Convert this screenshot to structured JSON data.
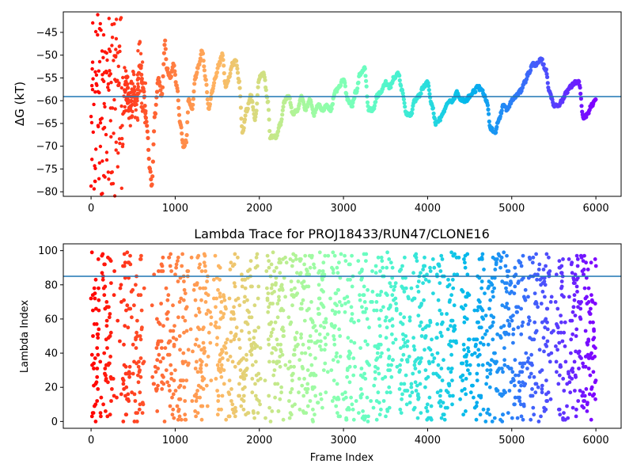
{
  "chart_data": [
    {
      "type": "scatter",
      "title": "",
      "xlabel": "",
      "ylabel": "ΔG (kT)",
      "xlim": [
        -330,
        6300
      ],
      "ylim": [
        -81,
        -40.5
      ],
      "xticks": [
        0,
        1000,
        2000,
        3000,
        4000,
        5000,
        6000
      ],
      "xtick_labels": [
        "0",
        "1000",
        "2000",
        "3000",
        "4000",
        "5000",
        "6000"
      ],
      "yticks": [
        -45,
        -50,
        -55,
        -60,
        -65,
        -70,
        -75,
        -80
      ],
      "ytick_labels": [
        "−45",
        "−50",
        "−55",
        "−60",
        "−65",
        "−70",
        "−75",
        "−80"
      ],
      "hline": -59.1,
      "hline_color": "#1f77b4",
      "colormap": "rainbow (frame index 0 = red → 6000 = violet)",
      "trace_keypoints": {
        "x": [
          0,
          40,
          80,
          120,
          160,
          220,
          260,
          300,
          340,
          380,
          420,
          460,
          500,
          540,
          580,
          620,
          660,
          700,
          720,
          760,
          800,
          840,
          880,
          900,
          940,
          980,
          1020,
          1060,
          1100,
          1130,
          1160,
          1200,
          1240,
          1280,
          1320,
          1360,
          1400,
          1440,
          1480,
          1520,
          1560,
          1600,
          1640,
          1680,
          1720,
          1760,
          1800,
          1850,
          1900,
          1950,
          2000,
          2050,
          2100,
          2130,
          2200,
          2250,
          2300,
          2350,
          2400,
          2450,
          2500,
          2550,
          2600,
          2650,
          2700,
          2750,
          2800,
          2850,
          2900,
          2950,
          3000,
          3050,
          3100,
          3150,
          3200,
          3250,
          3300,
          3350,
          3400,
          3450,
          3500,
          3550,
          3600,
          3650,
          3700,
          3750,
          3800,
          3850,
          3900,
          3950,
          4000,
          4050,
          4100,
          4150,
          4200,
          4250,
          4300,
          4350,
          4400,
          4450,
          4500,
          4550,
          4600,
          4650,
          4700,
          4750,
          4800,
          4850,
          4900,
          4950,
          5000,
          5050,
          5100,
          5150,
          5200,
          5250,
          5300,
          5350,
          5400,
          5450,
          5500,
          5550,
          5600,
          5650,
          5700,
          5750,
          5800,
          5850,
          5900,
          5950,
          6000
        ],
        "y": [
          -60,
          -52,
          -48,
          -55,
          -45,
          -50,
          -62,
          -58,
          -70,
          -60,
          -55,
          -62,
          -58,
          -60,
          -52,
          -57,
          -65,
          -75,
          -79,
          -63,
          -55,
          -59,
          -47,
          -53,
          -55,
          -52,
          -57,
          -65,
          -70,
          -69,
          -60,
          -62,
          -55,
          -52,
          -49,
          -55,
          -62,
          -58,
          -55,
          -52,
          -50,
          -57,
          -55,
          -52,
          -51,
          -56,
          -67,
          -62,
          -59,
          -64,
          -55,
          -54,
          -60,
          -68,
          -68,
          -65,
          -60,
          -59,
          -63,
          -62,
          -59,
          -62,
          -60,
          -63,
          -61,
          -62,
          -61,
          -62,
          -58,
          -57,
          -55,
          -60,
          -61,
          -58,
          -54,
          -53,
          -62,
          -62,
          -59,
          -58,
          -56,
          -57,
          -55,
          -54,
          -58,
          -63,
          -63,
          -60,
          -59,
          -57,
          -56,
          -61,
          -65,
          -64,
          -62,
          -60,
          -60,
          -58,
          -60,
          -60,
          -59,
          -58,
          -57,
          -58,
          -60,
          -66,
          -67,
          -64,
          -61,
          -62,
          -60,
          -59,
          -58,
          -56,
          -54,
          -52,
          -52,
          -51,
          -53,
          -58,
          -61,
          -61,
          -60,
          -58,
          -57,
          -56,
          -56,
          -64,
          -63,
          -61,
          -60
        ]
      },
      "early_scatter_note": "scattered points from frames 0–650 spanning about −41 to −81"
    },
    {
      "type": "scatter",
      "title": "Lambda Trace for PROJ18433/RUN47/CLONE16",
      "xlabel": "Frame Index",
      "ylabel": "Lambda Index",
      "xlim": [
        -330,
        6300
      ],
      "ylim": [
        -4,
        104
      ],
      "xticks": [
        0,
        1000,
        2000,
        3000,
        4000,
        5000,
        6000
      ],
      "xtick_labels": [
        "0",
        "1000",
        "2000",
        "3000",
        "4000",
        "5000",
        "6000"
      ],
      "yticks": [
        0,
        20,
        40,
        60,
        80,
        100
      ],
      "ytick_labels": [
        "0",
        "20",
        "40",
        "60",
        "80",
        "100"
      ],
      "hline": 85,
      "hline_color": "#1f77b4",
      "colormap": "rainbow (frame index 0 = red → 6000 = violet)",
      "point_range": {
        "x": [
          0,
          6000
        ],
        "y": [
          0,
          99
        ]
      },
      "stripe_centers": [
        50,
        200,
        420,
        560,
        820,
        950,
        1080,
        1270,
        1350,
        1530,
        1680,
        1830,
        1950,
        2150,
        2250,
        2400,
        2520,
        2620,
        2750,
        2920,
        3060,
        3250,
        3420,
        3550,
        3720,
        3880,
        4000,
        4150,
        4280,
        4450,
        4620,
        4780,
        4900,
        5000,
        5120,
        5250,
        5400,
        5600,
        5750,
        5880,
        5960
      ]
    }
  ]
}
